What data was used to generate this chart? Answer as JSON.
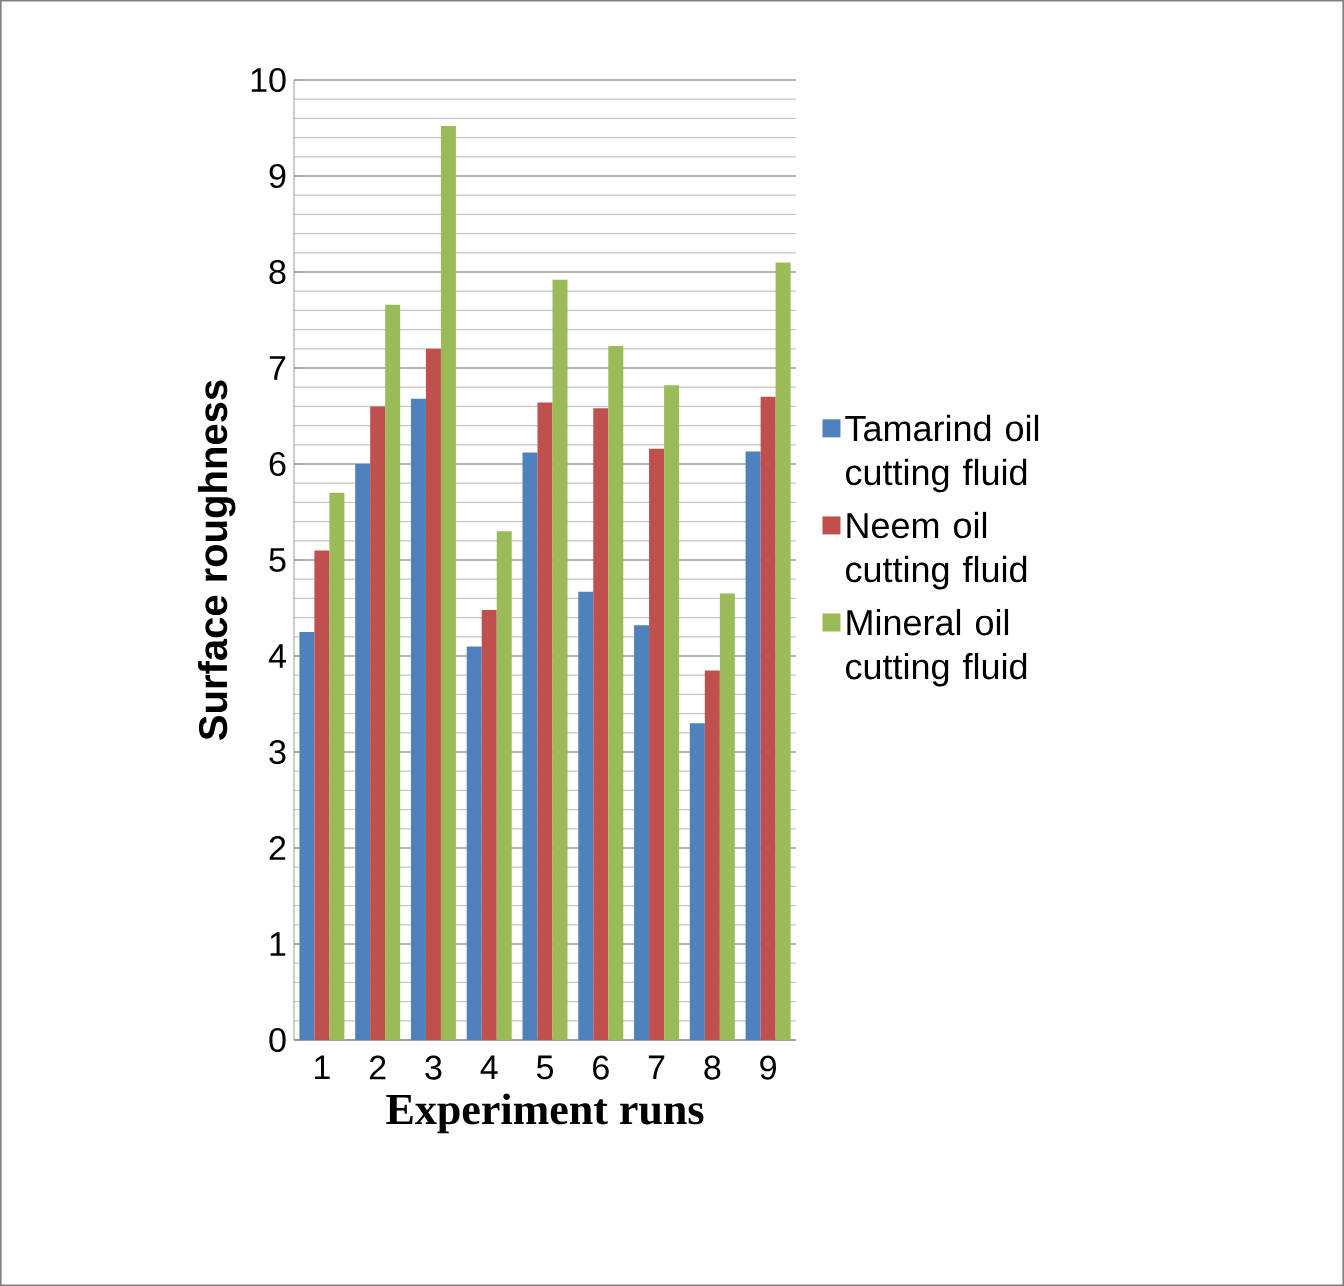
{
  "chart_data": {
    "type": "bar",
    "xlabel": "Experiment runs",
    "ylabel": "Surface roughness",
    "categories": [
      "1",
      "2",
      "3",
      "4",
      "5",
      "6",
      "7",
      "8",
      "9"
    ],
    "series": [
      {
        "name": "Tamarind oil cutting fluid",
        "color": "#4f81bd",
        "values": [
          4.25,
          6.0,
          6.68,
          4.1,
          6.12,
          4.67,
          4.32,
          3.3,
          6.13
        ]
      },
      {
        "name": "Neem oil cutting fluid",
        "color": "#c0504d",
        "values": [
          5.1,
          6.6,
          7.2,
          4.48,
          6.64,
          6.58,
          6.16,
          3.85,
          6.7
        ]
      },
      {
        "name": "Mineral oil cutting fluid",
        "color": "#9bbb59",
        "values": [
          5.7,
          7.66,
          9.52,
          5.3,
          7.92,
          7.23,
          6.82,
          4.65,
          8.1
        ]
      }
    ],
    "ylim": [
      0,
      10
    ],
    "yticks": [
      0,
      1,
      2,
      3,
      4,
      5,
      6,
      7,
      8,
      9,
      10
    ],
    "grid": "y",
    "legend": "right"
  }
}
